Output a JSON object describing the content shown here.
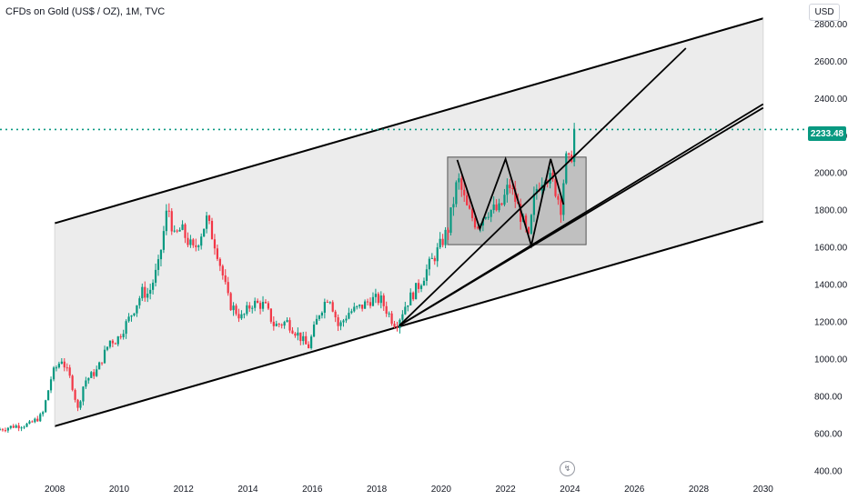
{
  "header": {
    "symbol_title": "CFDs on Gold (US$ / OZ), 1M, TVC",
    "currency": "USD"
  },
  "last_price": {
    "label": "2233.48",
    "value": 2233.48
  },
  "colors": {
    "up": "#089981",
    "down": "#f23645",
    "channel_fill": "#ececec",
    "box_fill": "#b2b2b2",
    "line": "#000000",
    "price_line": "#089981"
  },
  "chart_data": {
    "type": "candlestick",
    "x_axis": {
      "ticks": [
        "2008",
        "2010",
        "2012",
        "2014",
        "2016",
        "2018",
        "2020",
        "2022",
        "2024",
        "2026",
        "2028",
        "2030"
      ],
      "range": [
        2006.3,
        2030.6
      ]
    },
    "y_axis": {
      "ticks": [
        "400.00",
        "600.00",
        "800.00",
        "1000.00",
        "1200.00",
        "1400.00",
        "1600.00",
        "1800.00",
        "2000.00",
        "2200.00",
        "2400.00",
        "2600.00",
        "2800.00"
      ],
      "range": [
        390,
        2880
      ],
      "unit": "USD"
    },
    "price_path": [
      [
        2006.3,
        620
      ],
      [
        2006.8,
        640
      ],
      [
        2007.3,
        650
      ],
      [
        2007.7,
        700
      ],
      [
        2008.0,
        920
      ],
      [
        2008.3,
        1000
      ],
      [
        2008.6,
        880
      ],
      [
        2008.8,
        730
      ],
      [
        2009.0,
        880
      ],
      [
        2009.4,
        940
      ],
      [
        2009.8,
        1100
      ],
      [
        2010.0,
        1100
      ],
      [
        2010.4,
        1220
      ],
      [
        2010.8,
        1360
      ],
      [
        2011.0,
        1350
      ],
      [
        2011.3,
        1500
      ],
      [
        2011.6,
        1830
      ],
      [
        2011.8,
        1650
      ],
      [
        2012.0,
        1700
      ],
      [
        2012.4,
        1580
      ],
      [
        2012.8,
        1750
      ],
      [
        2013.1,
        1600
      ],
      [
        2013.5,
        1300
      ],
      [
        2013.9,
        1220
      ],
      [
        2014.2,
        1300
      ],
      [
        2014.6,
        1290
      ],
      [
        2014.9,
        1180
      ],
      [
        2015.3,
        1200
      ],
      [
        2015.7,
        1120
      ],
      [
        2015.95,
        1060
      ],
      [
        2016.3,
        1250
      ],
      [
        2016.6,
        1350
      ],
      [
        2016.9,
        1170
      ],
      [
        2017.2,
        1250
      ],
      [
        2017.6,
        1280
      ],
      [
        2017.9,
        1320
      ],
      [
        2018.2,
        1320
      ],
      [
        2018.6,
        1200
      ],
      [
        2018.7,
        1190
      ],
      [
        2019.0,
        1300
      ],
      [
        2019.4,
        1400
      ],
      [
        2019.7,
        1500
      ],
      [
        2020.0,
        1590
      ],
      [
        2020.3,
        1700
      ],
      [
        2020.6,
        1970
      ],
      [
        2020.9,
        1800
      ],
      [
        2021.2,
        1720
      ],
      [
        2021.5,
        1800
      ],
      [
        2021.9,
        1800
      ],
      [
        2022.2,
        1940
      ],
      [
        2022.5,
        1800
      ],
      [
        2022.8,
        1640
      ],
      [
        2023.0,
        1900
      ],
      [
        2023.3,
        2000
      ],
      [
        2023.6,
        1930
      ],
      [
        2023.8,
        1820
      ],
      [
        2023.95,
        2070
      ],
      [
        2024.1,
        2040
      ],
      [
        2024.2,
        2233.48
      ]
    ],
    "annotations": {
      "channel_upper": [
        [
          2008.0,
          1730
        ],
        [
          2030.0,
          2830
        ]
      ],
      "channel_lower": [
        [
          2008.0,
          640
        ],
        [
          2030.0,
          1740
        ]
      ],
      "consolidation_box": {
        "x": [
          2020.2,
          2024.5
        ],
        "y": [
          1615,
          2085
        ]
      },
      "trend_line_steep": [
        [
          2018.7,
          1180
        ],
        [
          2027.6,
          2670
        ]
      ],
      "trend_line_mid_1": [
        [
          2018.7,
          1180
        ],
        [
          2030.0,
          2370
        ]
      ],
      "trend_line_mid_2": [
        [
          2018.7,
          1180
        ],
        [
          2030.0,
          2350
        ]
      ],
      "pattern_zigzag": [
        [
          2020.5,
          2070
        ],
        [
          2021.2,
          1700
        ],
        [
          2022.0,
          2075
        ],
        [
          2022.8,
          1610
        ],
        [
          2023.4,
          2075
        ],
        [
          2023.8,
          1830
        ]
      ]
    }
  }
}
